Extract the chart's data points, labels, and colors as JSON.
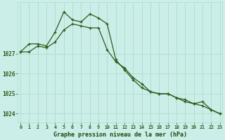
{
  "x": [
    0,
    1,
    2,
    3,
    4,
    5,
    6,
    7,
    8,
    9,
    10,
    11,
    12,
    13,
    14,
    15,
    16,
    17,
    18,
    19,
    20,
    21,
    22,
    23
  ],
  "line1": [
    1027.1,
    1027.1,
    1027.4,
    1027.3,
    1027.6,
    1028.2,
    1028.5,
    1028.4,
    1028.3,
    1028.3,
    1027.2,
    1026.6,
    1026.3,
    1025.8,
    1025.5,
    1025.1,
    1025.0,
    1025.0,
    1024.8,
    1024.6,
    1024.5,
    1024.4,
    1024.2,
    1024.0
  ],
  "line2": [
    1027.1,
    1027.5,
    1027.5,
    1027.4,
    1028.1,
    1029.1,
    1028.7,
    1028.6,
    1029.0,
    1028.8,
    1028.5,
    1026.7,
    1026.2,
    1025.7,
    1025.3,
    1025.1,
    1025.0,
    1025.0,
    1024.8,
    1024.7,
    1024.5,
    1024.6,
    1024.2,
    1024.0
  ],
  "bg_color": "#cceee8",
  "grid_color": "#aaddcc",
  "line_color": "#2d5a1b",
  "marker": "+",
  "xlabel": "Graphe pression niveau de la mer (hPa)",
  "xlabel_color": "#1a4a0a",
  "xtick_labels": [
    "0",
    "1",
    "2",
    "3",
    "4",
    "5",
    "6",
    "7",
    "8",
    "9",
    "10",
    "11",
    "12",
    "13",
    "14",
    "15",
    "16",
    "17",
    "18",
    "19",
    "20",
    "21",
    "22",
    "23"
  ],
  "ytick_labels": [
    1024,
    1025,
    1026,
    1027
  ],
  "ylim": [
    1023.55,
    1029.6
  ],
  "xlim": [
    -0.3,
    23.3
  ],
  "tick_color": "#2d5a1b",
  "linewidth": 0.9,
  "markersize": 3.5,
  "markeredgewidth": 0.9
}
